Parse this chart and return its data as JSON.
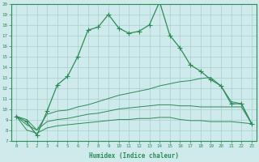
{
  "xlabel": "Humidex (Indice chaleur)",
  "x": [
    0,
    1,
    2,
    3,
    4,
    5,
    6,
    7,
    8,
    9,
    10,
    11,
    12,
    13,
    14,
    15,
    16,
    17,
    18,
    19,
    20,
    21,
    22,
    23
  ],
  "line1": [
    9.3,
    8.8,
    7.5,
    9.8,
    12.3,
    13.1,
    15.0,
    17.5,
    17.8,
    19.0,
    17.7,
    17.2,
    17.4,
    18.0,
    20.2,
    17.0,
    15.8,
    14.2,
    13.6,
    12.8,
    12.2,
    10.5,
    10.5,
    8.6
  ],
  "line2": [
    9.3,
    9.0,
    8.0,
    9.5,
    9.8,
    9.9,
    10.2,
    10.4,
    10.7,
    11.0,
    11.3,
    11.5,
    11.7,
    11.9,
    12.2,
    12.4,
    12.6,
    12.7,
    12.9,
    13.0,
    12.2,
    10.7,
    10.5,
    8.6
  ],
  "line3": [
    9.3,
    8.5,
    8.0,
    8.8,
    9.0,
    9.1,
    9.3,
    9.5,
    9.6,
    9.8,
    10.0,
    10.1,
    10.2,
    10.3,
    10.4,
    10.4,
    10.3,
    10.3,
    10.2,
    10.2,
    10.2,
    10.2,
    10.2,
    8.6
  ],
  "line4": [
    9.3,
    8.0,
    7.7,
    8.2,
    8.4,
    8.5,
    8.6,
    8.7,
    8.8,
    8.9,
    9.0,
    9.0,
    9.1,
    9.1,
    9.2,
    9.2,
    9.0,
    8.9,
    8.9,
    8.8,
    8.8,
    8.8,
    8.7,
    8.6
  ],
  "line_color": "#2e8b57",
  "bg_color": "#ceeaea",
  "grid_color": "#a8d0d0",
  "ylim": [
    7,
    20
  ],
  "xlim": [
    -0.5,
    23.5
  ],
  "yticks": [
    7,
    8,
    9,
    10,
    11,
    12,
    13,
    14,
    15,
    16,
    17,
    18,
    19,
    20
  ],
  "xticks": [
    0,
    1,
    2,
    3,
    4,
    5,
    6,
    7,
    8,
    9,
    10,
    11,
    12,
    13,
    14,
    15,
    16,
    17,
    18,
    19,
    20,
    21,
    22,
    23
  ]
}
